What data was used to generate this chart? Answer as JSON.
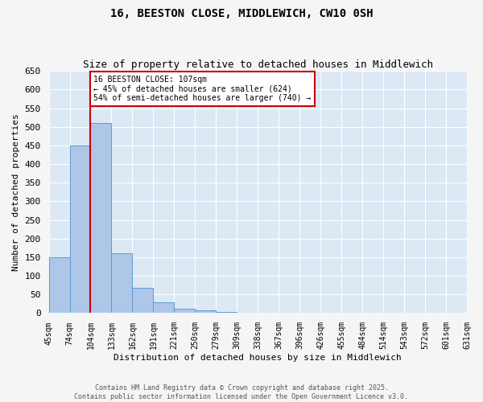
{
  "title": "16, BEESTON CLOSE, MIDDLEWICH, CW10 0SH",
  "subtitle": "Size of property relative to detached houses in Middlewich",
  "xlabel": "Distribution of detached houses by size in Middlewich",
  "ylabel": "Number of detached properties",
  "footer_line1": "Contains HM Land Registry data © Crown copyright and database right 2025.",
  "footer_line2": "Contains public sector information licensed under the Open Government Licence v3.0.",
  "bar_values": [
    150,
    450,
    510,
    160,
    67,
    30,
    12,
    7,
    3,
    0,
    0,
    0,
    0,
    0,
    2,
    0,
    0,
    0,
    0,
    0
  ],
  "bin_labels": [
    "45sqm",
    "74sqm",
    "104sqm",
    "133sqm",
    "162sqm",
    "191sqm",
    "221sqm",
    "250sqm",
    "279sqm",
    "309sqm",
    "338sqm",
    "367sqm",
    "396sqm",
    "426sqm",
    "455sqm",
    "484sqm",
    "514sqm",
    "543sqm",
    "572sqm",
    "601sqm",
    "631sqm"
  ],
  "bar_color": "#aec6e8",
  "bar_edge_color": "#5b9bd5",
  "background_color": "#dde8f5",
  "fig_background_color": "#f5f5f5",
  "grid_color": "#ffffff",
  "vline_color": "#cc0000",
  "annotation_text": "16 BEESTON CLOSE: 107sqm\n← 45% of detached houses are smaller (624)\n54% of semi-detached houses are larger (740) →",
  "annotation_box_color": "#ffffff",
  "annotation_box_edge_color": "#cc0000",
  "ylim": [
    0,
    650
  ],
  "yticks": [
    0,
    50,
    100,
    150,
    200,
    250,
    300,
    350,
    400,
    450,
    500,
    550,
    600,
    650
  ]
}
